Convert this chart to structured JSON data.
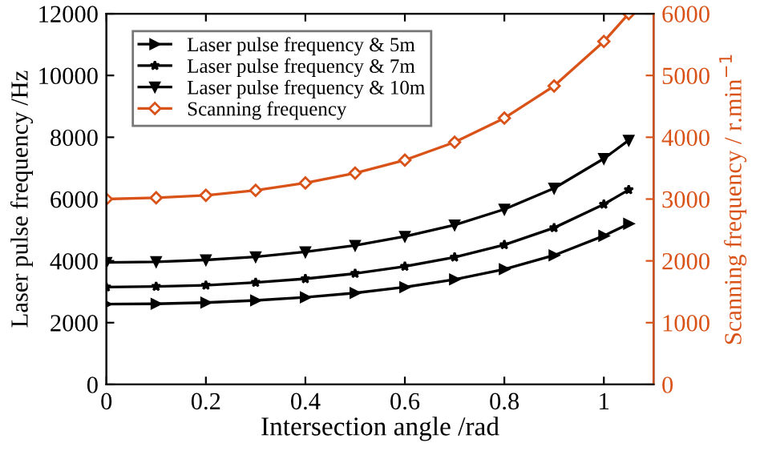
{
  "chart_data": {
    "type": "line",
    "xlabel": "Intersection angle /rad",
    "ylabel": "Laser pulse frequency /Hz",
    "y2label": "Scanning frequency / r.min$^{−1}$",
    "x": [
      0,
      0.1,
      0.2,
      0.3,
      0.4,
      0.5,
      0.6,
      0.7,
      0.8,
      0.9,
      1.0,
      1.05
    ],
    "series": [
      {
        "name": "Laser pulse frequency & 5m",
        "color": "#000000",
        "marker": "triangle_right",
        "values": [
          2600,
          2610,
          2650,
          2720,
          2820,
          2960,
          3150,
          3400,
          3730,
          4180,
          4810,
          5200
        ]
      },
      {
        "name": "Laser pulse frequency & 7m",
        "color": "#000000",
        "marker": "star",
        "values": [
          3150,
          3170,
          3210,
          3300,
          3420,
          3590,
          3820,
          4120,
          4520,
          5070,
          5830,
          6300
        ]
      },
      {
        "name": "Laser pulse frequency & 10m",
        "color": "#000000",
        "marker": "triangle_down",
        "values": [
          3950,
          3970,
          4030,
          4130,
          4290,
          4500,
          4790,
          5160,
          5670,
          6350,
          7310,
          7900
        ]
      },
      {
        "name": "Scanning frequency",
        "color": "#d95319",
        "marker": "diamond_open",
        "axis": "y2",
        "values": [
          3000,
          3020,
          3060,
          3140,
          3260,
          3420,
          3630,
          3920,
          4310,
          4830,
          5550,
          6000
        ]
      }
    ],
    "xlim": [
      0,
      1.1
    ],
    "xticks": [
      0,
      0.2,
      0.4,
      0.6,
      0.8,
      1
    ],
    "ylim": [
      0,
      12000
    ],
    "yticks": [
      0,
      2000,
      4000,
      6000,
      8000,
      10000,
      12000
    ],
    "y2lim": [
      0,
      6000
    ],
    "y2ticks": [
      0,
      1000,
      2000,
      3000,
      4000,
      5000,
      6000
    ],
    "legend": "top left",
    "grid": false
  }
}
